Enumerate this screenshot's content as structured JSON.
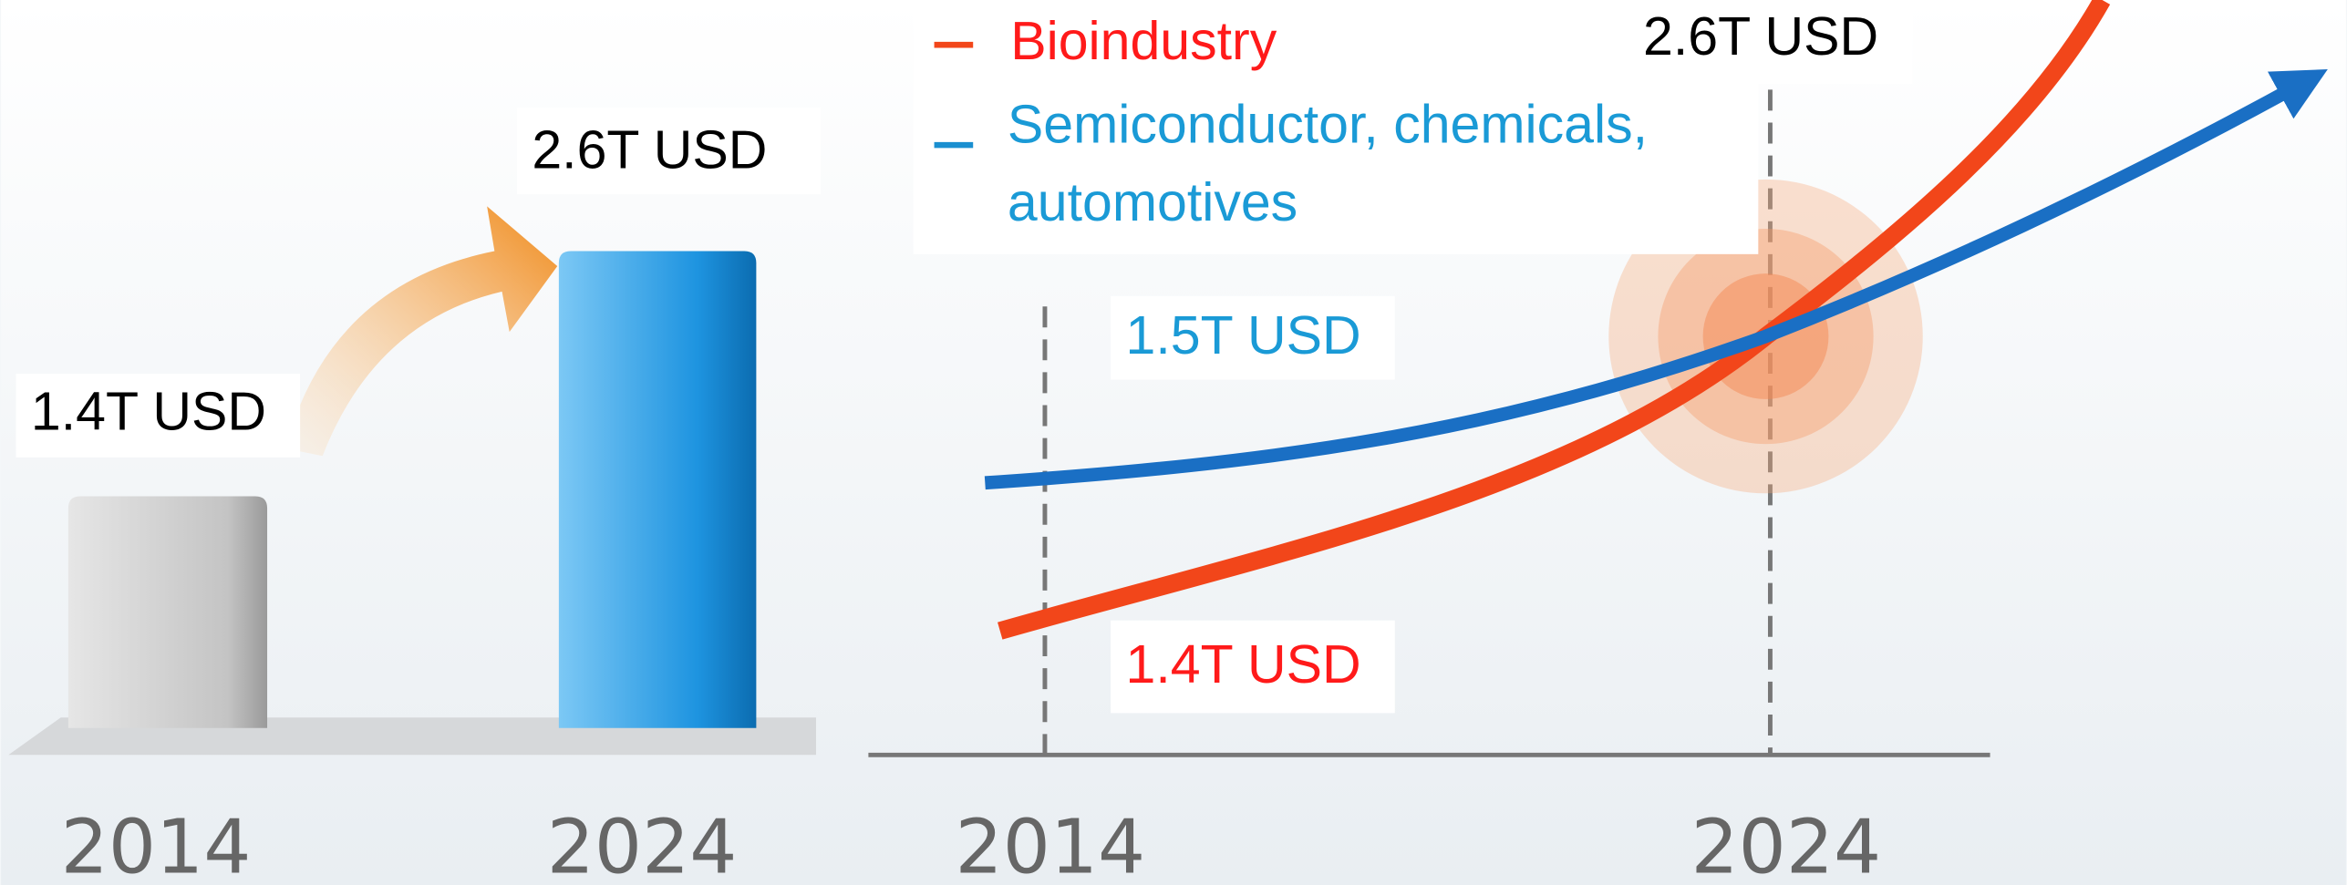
{
  "left_panel": {
    "start_label": "1.4T USD",
    "end_label": "2.6T USD",
    "start_year": "2014",
    "end_year": "2024"
  },
  "right_panel": {
    "legend": {
      "bioindustry": "Bioindustry",
      "semiconductor_line1": "Semiconductor, chemicals,",
      "semiconductor_line2": "automotives"
    },
    "crossing_label": "2.6T USD",
    "blue_start_label": "1.5T USD",
    "red_start_label": "1.4T USD",
    "start_year": "2014",
    "end_year": "2024"
  }
}
